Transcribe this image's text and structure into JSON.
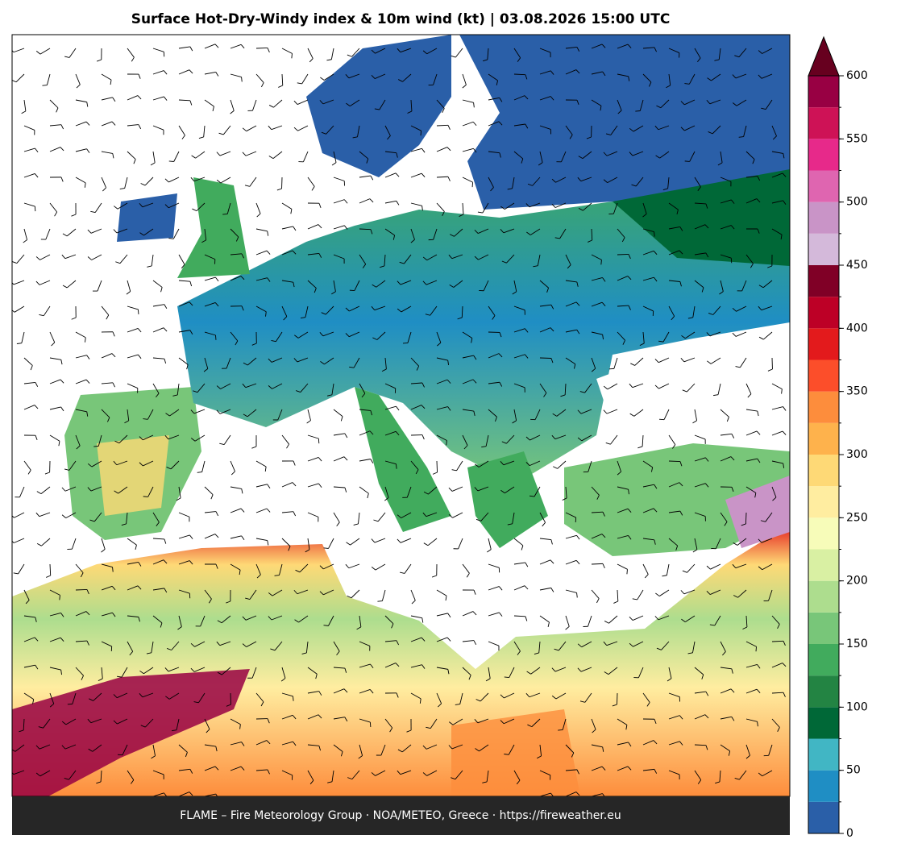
{
  "title": "Surface Hot-Dry-Windy index & 10m wind (kt)  |  03.08.2026 15:00 UTC",
  "footer": "FLAME – Fire Meteorology Group · NOA/METEO, Greece · https://fireweather.eu",
  "colorbar": {
    "boundaries": [
      0,
      25,
      50,
      75,
      100,
      125,
      150,
      175,
      200,
      225,
      250,
      275,
      300,
      325,
      350,
      375,
      400,
      425,
      450,
      475,
      500,
      525,
      550,
      575,
      600
    ],
    "colors": [
      "#2a5fa8",
      "#1f8ec4",
      "#41b6c4",
      "#006837",
      "#238443",
      "#41ab5d",
      "#78c679",
      "#addd8e",
      "#d9f0a3",
      "#f7fcb9",
      "#ffeda0",
      "#fed976",
      "#feb24c",
      "#fd8d3c",
      "#fc4e2a",
      "#e31a1c",
      "#bd0026",
      "#800026",
      "#d4b9da",
      "#c994c7",
      "#df65b0",
      "#e7298a",
      "#ce1256",
      "#980043"
    ],
    "extend_color": "#67001f",
    "ticks": [
      0,
      50,
      100,
      150,
      200,
      250,
      300,
      350,
      400,
      450,
      500,
      550,
      600
    ]
  }
}
